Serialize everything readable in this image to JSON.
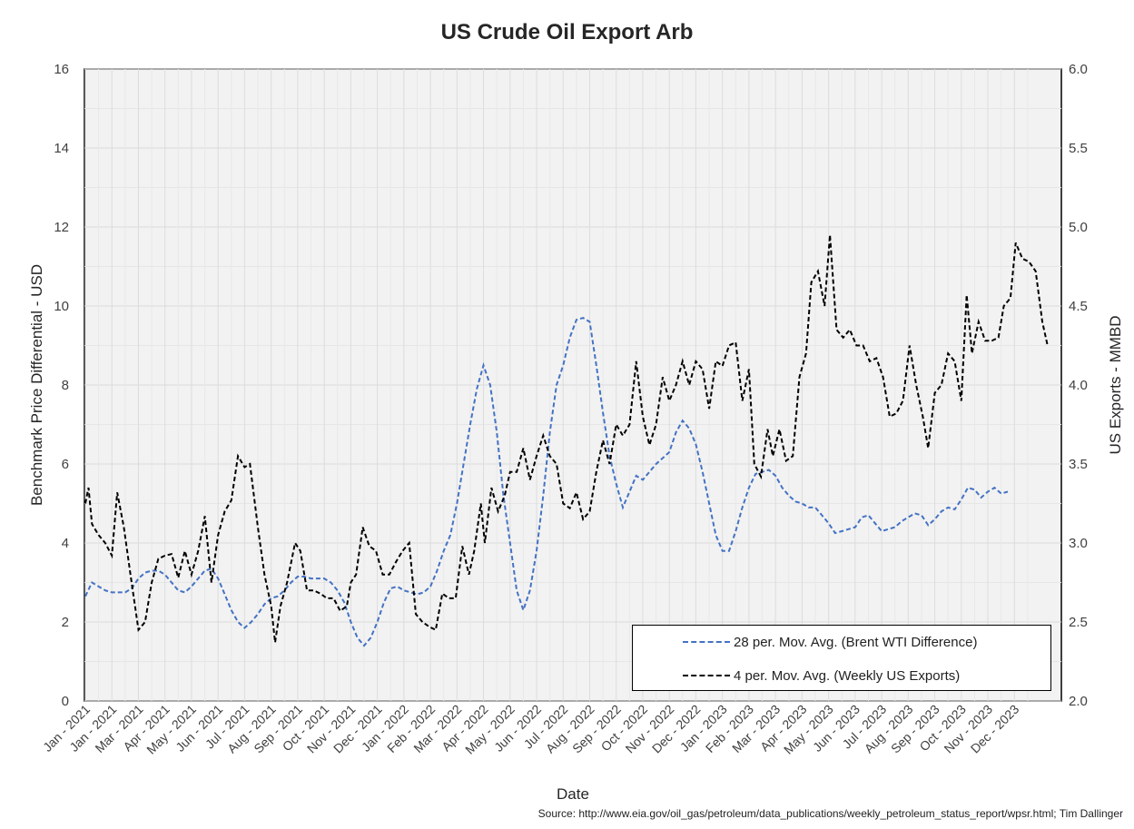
{
  "title": "US Crude Oil Export Arb",
  "source": "Source: http://www.eia.gov/oil_gas/petroleum/data_publications/weekly_petroleum_status_report/wpsr.html; Tim Dallinger",
  "chart_data": {
    "type": "line",
    "title": "US Crude Oil Export Arb",
    "xlabel": "Date",
    "ylabel": "Benchmark Price Differential - USD",
    "y2label": "US Exports - MMBD",
    "ylim": [
      0,
      16
    ],
    "y2lim": [
      2.0,
      6.0
    ],
    "yticks": [
      "0",
      "2",
      "4",
      "6",
      "8",
      "10",
      "12",
      "14",
      "16"
    ],
    "y2ticks": [
      "2.0",
      "2.5",
      "3.0",
      "3.5",
      "4.0",
      "4.5",
      "5.0",
      "5.5",
      "6.0"
    ],
    "xticks": [
      "Jan - 2021",
      "Jan - 2021",
      "Mar - 2021",
      "Apr - 2021",
      "May - 2021",
      "Jun - 2021",
      "Jul - 2021",
      "Aug - 2021",
      "Sep - 2021",
      "Oct - 2021",
      "Nov - 2021",
      "Dec - 2021",
      "Jan - 2022",
      "Feb - 2022",
      "Mar - 2022",
      "Apr - 2022",
      "May - 2022",
      "Jun - 2022",
      "Jul - 2022",
      "Aug - 2022",
      "Sep - 2022",
      "Oct - 2022",
      "Nov - 2022",
      "Dec - 2022",
      "Jan - 2023",
      "Feb - 2023",
      "Mar - 2023",
      "Apr - 2023",
      "May - 2023",
      "Jun - 2023",
      "Jul - 2023",
      "Aug - 2023",
      "Sep - 2023",
      "Oct - 2023",
      "Nov - 2023",
      "Dec - 2023"
    ],
    "grid": true,
    "legend_position": "bottom-right",
    "series": [
      {
        "name": "28 per. Mov. Avg. (Brent WTI Difference)",
        "axis": "left",
        "color": "#4472C4",
        "points": [
          [
            0.0,
            2.65
          ],
          [
            0.25,
            3.0
          ],
          [
            0.5,
            2.9
          ],
          [
            0.75,
            2.8
          ],
          [
            1.0,
            2.75
          ],
          [
            1.25,
            2.75
          ],
          [
            1.5,
            2.75
          ],
          [
            1.75,
            2.85
          ],
          [
            2.0,
            3.1
          ],
          [
            2.25,
            3.25
          ],
          [
            2.5,
            3.3
          ],
          [
            2.75,
            3.3
          ],
          [
            3.0,
            3.2
          ],
          [
            3.25,
            3.0
          ],
          [
            3.5,
            2.8
          ],
          [
            3.75,
            2.75
          ],
          [
            4.0,
            2.9
          ],
          [
            4.25,
            3.1
          ],
          [
            4.5,
            3.3
          ],
          [
            4.75,
            3.35
          ],
          [
            5.0,
            3.1
          ],
          [
            5.25,
            2.7
          ],
          [
            5.5,
            2.3
          ],
          [
            5.75,
            2.0
          ],
          [
            6.0,
            1.85
          ],
          [
            6.25,
            2.0
          ],
          [
            6.5,
            2.2
          ],
          [
            6.75,
            2.45
          ],
          [
            7.0,
            2.6
          ],
          [
            7.25,
            2.65
          ],
          [
            7.5,
            2.8
          ],
          [
            7.75,
            3.0
          ],
          [
            8.0,
            3.15
          ],
          [
            8.25,
            3.15
          ],
          [
            8.5,
            3.1
          ],
          [
            8.75,
            3.1
          ],
          [
            9.0,
            3.1
          ],
          [
            9.25,
            3.0
          ],
          [
            9.5,
            2.8
          ],
          [
            9.75,
            2.5
          ],
          [
            10.0,
            2.0
          ],
          [
            10.25,
            1.6
          ],
          [
            10.5,
            1.4
          ],
          [
            10.75,
            1.6
          ],
          [
            11.0,
            2.0
          ],
          [
            11.25,
            2.5
          ],
          [
            11.5,
            2.85
          ],
          [
            11.75,
            2.9
          ],
          [
            12.0,
            2.8
          ],
          [
            12.25,
            2.75
          ],
          [
            12.5,
            2.7
          ],
          [
            12.75,
            2.75
          ],
          [
            13.0,
            2.9
          ],
          [
            13.25,
            3.3
          ],
          [
            13.5,
            3.8
          ],
          [
            13.75,
            4.2
          ],
          [
            14.0,
            5.0
          ],
          [
            14.25,
            6.0
          ],
          [
            14.5,
            7.0
          ],
          [
            14.75,
            7.9
          ],
          [
            15.0,
            8.5
          ],
          [
            15.25,
            8.0
          ],
          [
            15.5,
            6.8
          ],
          [
            15.75,
            5.2
          ],
          [
            16.0,
            4.0
          ],
          [
            16.25,
            2.8
          ],
          [
            16.5,
            2.3
          ],
          [
            16.75,
            2.8
          ],
          [
            17.0,
            3.8
          ],
          [
            17.25,
            5.2
          ],
          [
            17.5,
            6.8
          ],
          [
            17.75,
            8.0
          ],
          [
            18.0,
            8.5
          ],
          [
            18.25,
            9.2
          ],
          [
            18.5,
            9.65
          ],
          [
            18.75,
            9.7
          ],
          [
            19.0,
            9.6
          ],
          [
            19.25,
            8.5
          ],
          [
            19.5,
            7.3
          ],
          [
            19.75,
            6.2
          ],
          [
            20.0,
            5.5
          ],
          [
            20.25,
            4.9
          ],
          [
            20.5,
            5.3
          ],
          [
            20.75,
            5.7
          ],
          [
            21.0,
            5.6
          ],
          [
            21.25,
            5.8
          ],
          [
            21.5,
            6.0
          ],
          [
            21.75,
            6.15
          ],
          [
            22.0,
            6.3
          ],
          [
            22.25,
            6.8
          ],
          [
            22.5,
            7.1
          ],
          [
            22.75,
            6.9
          ],
          [
            23.0,
            6.5
          ],
          [
            23.25,
            5.8
          ],
          [
            23.5,
            5.0
          ],
          [
            23.75,
            4.2
          ],
          [
            24.0,
            3.8
          ],
          [
            24.25,
            3.8
          ],
          [
            24.5,
            4.3
          ],
          [
            24.75,
            4.9
          ],
          [
            25.0,
            5.4
          ],
          [
            25.25,
            5.75
          ],
          [
            25.5,
            5.8
          ],
          [
            25.75,
            5.85
          ],
          [
            26.0,
            5.7
          ],
          [
            26.25,
            5.4
          ],
          [
            26.5,
            5.2
          ],
          [
            26.75,
            5.05
          ],
          [
            27.0,
            5.0
          ],
          [
            27.25,
            4.9
          ],
          [
            27.5,
            4.9
          ],
          [
            27.75,
            4.7
          ],
          [
            28.0,
            4.5
          ],
          [
            28.25,
            4.25
          ],
          [
            28.5,
            4.3
          ],
          [
            28.75,
            4.35
          ],
          [
            29.0,
            4.4
          ],
          [
            29.25,
            4.65
          ],
          [
            29.5,
            4.7
          ],
          [
            29.75,
            4.5
          ],
          [
            30.0,
            4.3
          ],
          [
            30.25,
            4.35
          ],
          [
            30.5,
            4.4
          ],
          [
            30.75,
            4.55
          ],
          [
            31.0,
            4.65
          ],
          [
            31.25,
            4.75
          ],
          [
            31.5,
            4.7
          ],
          [
            31.75,
            4.45
          ],
          [
            32.0,
            4.6
          ],
          [
            32.25,
            4.8
          ],
          [
            32.5,
            4.9
          ],
          [
            32.75,
            4.85
          ],
          [
            33.0,
            5.1
          ],
          [
            33.25,
            5.4
          ],
          [
            33.5,
            5.35
          ],
          [
            33.75,
            5.15
          ],
          [
            34.0,
            5.3
          ],
          [
            34.25,
            5.4
          ],
          [
            34.5,
            5.25
          ],
          [
            34.75,
            5.3
          ]
        ]
      },
      {
        "name": "4 per. Mov. Avg. (Weekly US Exports)",
        "axis": "right",
        "color": "#000000",
        "points": [
          [
            0.0,
            3.25
          ],
          [
            0.12,
            3.35
          ],
          [
            0.25,
            3.12
          ],
          [
            0.5,
            3.05
          ],
          [
            0.75,
            3.0
          ],
          [
            1.0,
            2.92
          ],
          [
            1.2,
            3.32
          ],
          [
            1.45,
            3.1
          ],
          [
            1.7,
            2.8
          ],
          [
            2.0,
            2.45
          ],
          [
            2.25,
            2.5
          ],
          [
            2.5,
            2.75
          ],
          [
            2.75,
            2.9
          ],
          [
            3.0,
            2.92
          ],
          [
            3.25,
            2.93
          ],
          [
            3.5,
            2.78
          ],
          [
            3.75,
            2.95
          ],
          [
            4.0,
            2.8
          ],
          [
            4.25,
            2.95
          ],
          [
            4.5,
            3.17
          ],
          [
            4.75,
            2.75
          ],
          [
            5.0,
            3.05
          ],
          [
            5.25,
            3.2
          ],
          [
            5.5,
            3.27
          ],
          [
            5.75,
            3.55
          ],
          [
            6.0,
            3.48
          ],
          [
            6.2,
            3.5
          ],
          [
            6.5,
            3.1
          ],
          [
            6.75,
            2.8
          ],
          [
            7.0,
            2.6
          ],
          [
            7.15,
            2.37
          ],
          [
            7.35,
            2.6
          ],
          [
            7.6,
            2.75
          ],
          [
            7.9,
            3.0
          ],
          [
            8.1,
            2.95
          ],
          [
            8.35,
            2.7
          ],
          [
            8.6,
            2.7
          ],
          [
            8.85,
            2.68
          ],
          [
            9.1,
            2.65
          ],
          [
            9.35,
            2.65
          ],
          [
            9.6,
            2.57
          ],
          [
            9.85,
            2.6
          ],
          [
            10.0,
            2.75
          ],
          [
            10.2,
            2.8
          ],
          [
            10.45,
            3.1
          ],
          [
            10.7,
            2.98
          ],
          [
            10.95,
            2.95
          ],
          [
            11.2,
            2.8
          ],
          [
            11.45,
            2.8
          ],
          [
            11.7,
            2.88
          ],
          [
            11.95,
            2.95
          ],
          [
            12.2,
            3.0
          ],
          [
            12.45,
            2.55
          ],
          [
            12.7,
            2.5
          ],
          [
            12.95,
            2.47
          ],
          [
            13.2,
            2.45
          ],
          [
            13.45,
            2.68
          ],
          [
            13.7,
            2.65
          ],
          [
            13.95,
            2.65
          ],
          [
            14.2,
            2.98
          ],
          [
            14.45,
            2.8
          ],
          [
            14.65,
            2.95
          ],
          [
            14.9,
            3.25
          ],
          [
            15.05,
            3.0
          ],
          [
            15.3,
            3.35
          ],
          [
            15.55,
            3.2
          ],
          [
            15.8,
            3.3
          ],
          [
            16.0,
            3.45
          ],
          [
            16.25,
            3.45
          ],
          [
            16.5,
            3.6
          ],
          [
            16.75,
            3.4
          ],
          [
            17.0,
            3.55
          ],
          [
            17.25,
            3.68
          ],
          [
            17.5,
            3.55
          ],
          [
            17.75,
            3.5
          ],
          [
            18.0,
            3.25
          ],
          [
            18.25,
            3.22
          ],
          [
            18.5,
            3.32
          ],
          [
            18.75,
            3.15
          ],
          [
            19.0,
            3.2
          ],
          [
            19.25,
            3.45
          ],
          [
            19.5,
            3.65
          ],
          [
            19.75,
            3.5
          ],
          [
            20.0,
            3.75
          ],
          [
            20.25,
            3.68
          ],
          [
            20.5,
            3.75
          ],
          [
            20.75,
            4.15
          ],
          [
            21.0,
            3.8
          ],
          [
            21.25,
            3.62
          ],
          [
            21.5,
            3.75
          ],
          [
            21.75,
            4.05
          ],
          [
            22.0,
            3.9
          ],
          [
            22.25,
            4.0
          ],
          [
            22.5,
            4.15
          ],
          [
            22.75,
            4.0
          ],
          [
            23.0,
            4.15
          ],
          [
            23.25,
            4.1
          ],
          [
            23.5,
            3.85
          ],
          [
            23.75,
            4.15
          ],
          [
            24.0,
            4.12
          ],
          [
            24.25,
            4.25
          ],
          [
            24.5,
            4.27
          ],
          [
            24.75,
            3.9
          ],
          [
            25.0,
            4.1
          ],
          [
            25.2,
            3.5
          ],
          [
            25.45,
            3.42
          ],
          [
            25.7,
            3.72
          ],
          [
            25.9,
            3.55
          ],
          [
            26.15,
            3.72
          ],
          [
            26.4,
            3.52
          ],
          [
            26.65,
            3.55
          ],
          [
            26.9,
            4.05
          ],
          [
            27.15,
            4.2
          ],
          [
            27.35,
            4.65
          ],
          [
            27.6,
            4.72
          ],
          [
            27.85,
            4.5
          ],
          [
            28.05,
            4.95
          ],
          [
            28.3,
            4.35
          ],
          [
            28.55,
            4.3
          ],
          [
            28.8,
            4.35
          ],
          [
            29.05,
            4.25
          ],
          [
            29.3,
            4.25
          ],
          [
            29.55,
            4.15
          ],
          [
            29.8,
            4.17
          ],
          [
            30.05,
            4.05
          ],
          [
            30.3,
            3.8
          ],
          [
            30.55,
            3.82
          ],
          [
            30.8,
            3.9
          ],
          [
            31.05,
            4.25
          ],
          [
            31.3,
            4.0
          ],
          [
            31.55,
            3.8
          ],
          [
            31.75,
            3.6
          ],
          [
            32.0,
            3.95
          ],
          [
            32.25,
            4.0
          ],
          [
            32.5,
            4.2
          ],
          [
            32.75,
            4.15
          ],
          [
            33.0,
            3.9
          ],
          [
            33.2,
            4.57
          ],
          [
            33.4,
            4.2
          ],
          [
            33.65,
            4.4
          ],
          [
            33.9,
            4.28
          ],
          [
            34.15,
            4.28
          ],
          [
            34.4,
            4.3
          ],
          [
            34.6,
            4.5
          ],
          [
            34.85,
            4.55
          ],
          [
            35.05,
            4.9
          ],
          [
            35.3,
            4.8
          ],
          [
            35.55,
            4.78
          ],
          [
            35.8,
            4.72
          ],
          [
            36.05,
            4.4
          ],
          [
            36.25,
            4.25
          ]
        ]
      }
    ]
  }
}
